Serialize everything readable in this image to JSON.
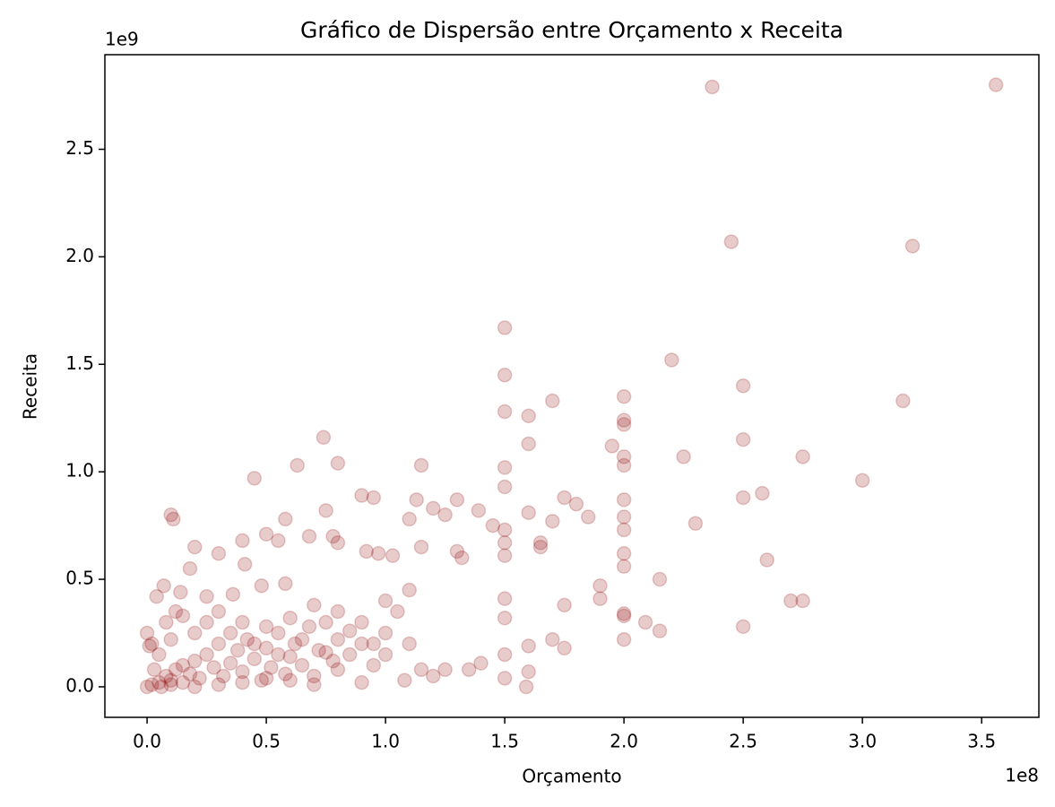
{
  "chart_data": {
    "type": "scatter",
    "title": "Gráfico de Dispersão entre Orçamento x Receita",
    "x_label": "Orçamento",
    "y_label": "Receita",
    "x_offset": "1e8",
    "y_offset": "1e9",
    "color": "#8b0000",
    "alpha": 0.2,
    "xlim": [
      -0.177,
      3.74
    ],
    "ylim": [
      -0.142,
      2.94
    ],
    "xticks": [
      {
        "value": 0,
        "label": "0.0"
      },
      0.5,
      {
        "value": 1,
        "label": "1.0"
      },
      1.5,
      {
        "value": 2,
        "label": "2.0"
      },
      2.5,
      {
        "value": 3,
        "label": "3.0"
      },
      3.5
    ],
    "yticks": [
      {
        "value": 0,
        "label": "0.0"
      },
      0.5,
      {
        "value": 1,
        "label": "1.0"
      },
      1.5,
      {
        "value": 2,
        "label": "2.0"
      },
      2.5
    ],
    "x": [
      2.37,
      3.56,
      2.45,
      3.21,
      1.5,
      1.5,
      1.5,
      2.2,
      2.5,
      3.17,
      1.7,
      2,
      2,
      2,
      1.6,
      1.6,
      2.5,
      1.95,
      0.74,
      2,
      2,
      2.25,
      2.75,
      3,
      1.5,
      1.15,
      0.63,
      0.8,
      0.45,
      1.5,
      2.58,
      2.5,
      0.9,
      0.95,
      1.3,
      1.13,
      2,
      1.75,
      1.8,
      1.39,
      1.6,
      1.2,
      0.1,
      0.11,
      0.58,
      0.75,
      2.3,
      2,
      2,
      1.85,
      1.45,
      1.7,
      1.25,
      1.1,
      0.78,
      0.68,
      0.5,
      0.4,
      0.55,
      0.8,
      1.5,
      1.5,
      1.5,
      1.65,
      1.65,
      0.3,
      0.41,
      0.92,
      0.97,
      1.03,
      1.15,
      1.3,
      1.32,
      2,
      2,
      2.6,
      2.15,
      2.7,
      2.75,
      2.5,
      2,
      2,
      2.09,
      2.15,
      2,
      1.9,
      1.9,
      1.75,
      1.7,
      1.75,
      1.6,
      1.6,
      1.59,
      1.5,
      1.5,
      1.5,
      1.5,
      1.4,
      1.35,
      1.25,
      1.2,
      1.08,
      1.15,
      0.2,
      0.18,
      0.04,
      0.07,
      0.14,
      0.25,
      0.36,
      0,
      0.01,
      0.48,
      0.58,
      0,
      0.02,
      0.05,
      0.08,
      0.1,
      0.12,
      0.15,
      0.18,
      0.2,
      0.22,
      0.25,
      0.28,
      0.3,
      0.32,
      0.35,
      0.38,
      0.4,
      0.42,
      0.45,
      0.48,
      0.5,
      0.52,
      0.55,
      0.58,
      0.6,
      0.62,
      0.65,
      0.68,
      0.7,
      0.72,
      0.75,
      0.78,
      0.8,
      0.8,
      0.8,
      0.85,
      0.9,
      0.9,
      0.9,
      0.95,
      1,
      1,
      1,
      1.05,
      1.1,
      1.1,
      0.7,
      0.6,
      0.5,
      0.4,
      0.3,
      0.25,
      0.15,
      0.1,
      0.05,
      0.03,
      0.06,
      0.1,
      0.15,
      0.2,
      0.3,
      0.4,
      0.5,
      0.6,
      0.7,
      0.12,
      0.2,
      0.35,
      0.45,
      0.55,
      0.65,
      0.75,
      0.85,
      0.95,
      0.02,
      0.08
    ],
    "values": [
      2.79,
      2.8,
      2.07,
      2.05,
      1.67,
      1.45,
      1.28,
      1.52,
      1.4,
      1.33,
      1.33,
      1.35,
      1.24,
      1.22,
      1.26,
      1.13,
      1.15,
      1.12,
      1.16,
      1.07,
      1.03,
      1.07,
      1.07,
      0.96,
      1.02,
      1.03,
      1.03,
      1.04,
      0.97,
      0.93,
      0.9,
      0.88,
      0.89,
      0.88,
      0.87,
      0.87,
      0.87,
      0.88,
      0.85,
      0.82,
      0.81,
      0.83,
      0.8,
      0.78,
      0.78,
      0.82,
      0.76,
      0.79,
      0.73,
      0.79,
      0.75,
      0.77,
      0.8,
      0.78,
      0.7,
      0.7,
      0.71,
      0.68,
      0.68,
      0.67,
      0.73,
      0.67,
      0.61,
      0.67,
      0.65,
      0.62,
      0.57,
      0.63,
      0.62,
      0.61,
      0.65,
      0.63,
      0.6,
      0.62,
      0.56,
      0.59,
      0.5,
      0.4,
      0.4,
      0.28,
      0.34,
      0.33,
      0.3,
      0.26,
      0.22,
      0.47,
      0.41,
      0.38,
      0.22,
      0.18,
      0.19,
      0.07,
      0,
      0.04,
      0.15,
      0.32,
      0.41,
      0.11,
      0.08,
      0.08,
      0.05,
      0.03,
      0.08,
      0.65,
      0.55,
      0.42,
      0.47,
      0.44,
      0.42,
      0.43,
      0.25,
      0.19,
      0.47,
      0.48,
      0,
      0.01,
      0.02,
      0.05,
      0.03,
      0.08,
      0.1,
      0.06,
      0.12,
      0.04,
      0.15,
      0.09,
      0.2,
      0.05,
      0.11,
      0.17,
      0.07,
      0.22,
      0.13,
      0.03,
      0.18,
      0.09,
      0.25,
      0.06,
      0.14,
      0.2,
      0.1,
      0.28,
      0.05,
      0.17,
      0.3,
      0.12,
      0.22,
      0.35,
      0.08,
      0.15,
      0.02,
      0.2,
      0.3,
      0.1,
      0.25,
      0.4,
      0.15,
      0.35,
      0.2,
      0.45,
      0.38,
      0.32,
      0.28,
      0.3,
      0.35,
      0.3,
      0.33,
      0.22,
      0.15,
      0.08,
      0,
      0.01,
      0.02,
      0,
      0.01,
      0.02,
      0.04,
      0.03,
      0.01,
      0.35,
      0.25,
      0.25,
      0.2,
      0.15,
      0.22,
      0.16,
      0.26,
      0.2,
      0.2,
      0.3
    ]
  }
}
